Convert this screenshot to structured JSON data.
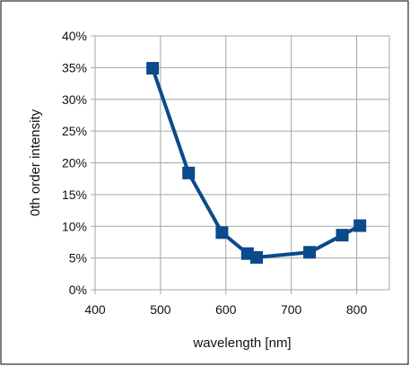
{
  "chart_data": {
    "type": "line",
    "title": "",
    "xlabel": "wavelength [nm]",
    "ylabel": "0th order intensity",
    "xlim": [
      400,
      850
    ],
    "ylim": [
      0,
      0.4
    ],
    "x_ticks": [
      400,
      500,
      600,
      700,
      800
    ],
    "x_tick_labels": [
      "400",
      "500",
      "600",
      "700",
      "800"
    ],
    "y_ticks": [
      0,
      0.05,
      0.1,
      0.15,
      0.2,
      0.25,
      0.3,
      0.35,
      0.4
    ],
    "y_tick_labels": [
      "0%",
      "5%",
      "10%",
      "15%",
      "20%",
      "25%",
      "30%",
      "35%",
      "40%"
    ],
    "grid": true,
    "legend": "none",
    "series": [
      {
        "color": "#0b4a8b",
        "marker": "square",
        "points": [
          {
            "x": 488,
            "y": 0.349
          },
          {
            "x": 543,
            "y": 0.184
          },
          {
            "x": 594,
            "y": 0.09
          },
          {
            "x": 633,
            "y": 0.057
          },
          {
            "x": 647,
            "y": 0.051
          },
          {
            "x": 728,
            "y": 0.059
          },
          {
            "x": 778,
            "y": 0.086
          },
          {
            "x": 805,
            "y": 0.101
          }
        ]
      }
    ]
  }
}
